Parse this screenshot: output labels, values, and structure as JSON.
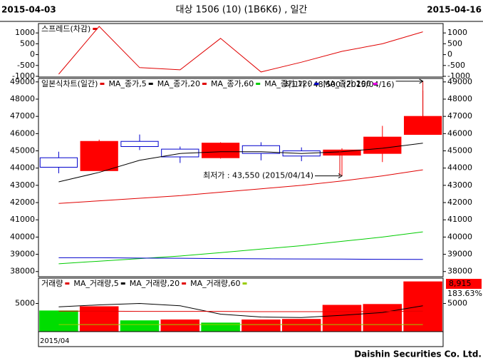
{
  "header": {
    "start_date": "2015-04-03",
    "title": "대상 1506 (10)  (1B6K6) , 일간",
    "end_date": "2015-04-16"
  },
  "chart_data": [
    {
      "type": "line",
      "series": [
        {
          "name": "스프레드(차감)",
          "color": "#e00000",
          "values": [
            -900,
            1300,
            -600,
            -700,
            750,
            -800,
            -350,
            150,
            500,
            1050
          ]
        }
      ],
      "ylim": [
        -1033,
        1433
      ],
      "yticks": [
        -1000,
        -500,
        0,
        500,
        1000
      ]
    },
    {
      "type": "candlestick",
      "name": "일본식차트(일간)",
      "name_color": "#e00000",
      "open": [
        44600,
        43850,
        45550,
        45100,
        44600,
        45300,
        45000,
        44750,
        44850,
        45950
      ],
      "high": [
        44950,
        45650,
        45950,
        45250,
        45500,
        45500,
        45200,
        45150,
        46450,
        48500
      ],
      "low": [
        43700,
        43850,
        45050,
        44300,
        44550,
        44450,
        44400,
        43550,
        44350,
        45950
      ],
      "close": [
        44050,
        45550,
        45250,
        44650,
        45450,
        44850,
        44700,
        45050,
        45800,
        47000
      ],
      "up_color": "#ff0000",
      "down_color": "#0000cc",
      "series": [
        {
          "name": "MA_종가,5",
          "color": "#000000",
          "values": [
            43200,
            43750,
            44450,
            44850,
            44950,
            44950,
            44850,
            44950,
            45150,
            45450
          ]
        },
        {
          "name": "MA_종가,20",
          "color": "#e00000",
          "values": [
            41950,
            42100,
            42250,
            42400,
            42600,
            42800,
            43000,
            43250,
            43550,
            43900
          ]
        },
        {
          "name": "MA_종가,60",
          "color": "#00cc00",
          "values": [
            38450,
            38600,
            38750,
            38900,
            39100,
            39300,
            39500,
            39750,
            40000,
            40300
          ]
        },
        {
          "name": "MA_종가,120",
          "color": "#0000cc",
          "values": [
            38800,
            38800,
            38780,
            38770,
            38750,
            38740,
            38730,
            38720,
            38710,
            38700
          ]
        },
        {
          "name": "MA_종가,200",
          "color": "#ee00ee",
          "values": [
            null,
            null,
            null,
            null,
            null,
            null,
            null,
            null,
            null,
            null
          ]
        }
      ],
      "ylim": [
        37700,
        49200
      ],
      "yticks": [
        38000,
        39000,
        40000,
        41000,
        42000,
        43000,
        44000,
        45000,
        46000,
        47000,
        48000,
        49000
      ],
      "annotations": [
        {
          "text": "최고가 : 48,500 (2015/04/16)",
          "color": "#e00000"
        },
        {
          "text": "최저가 : 43,550 (2015/04/14)",
          "color": "#0000cc"
        }
      ]
    },
    {
      "type": "bar",
      "name": "거래량",
      "name_color": "#e00000",
      "values": [
        3750,
        4500,
        2000,
        2150,
        1600,
        2150,
        2250,
        4750,
        4900,
        8915
      ],
      "colors": [
        "#00dd00",
        "#ff0000",
        "#00dd00",
        "#ff0000",
        "#00dd00",
        "#ff0000",
        "#ff0000",
        "#ff0000",
        "#ff0000",
        "#ff0000"
      ],
      "series": [
        {
          "name": "MA_거래량,5",
          "color": "#000000",
          "values": [
            4400,
            4750,
            5000,
            4600,
            3100,
            2600,
            2500,
            2900,
            3400,
            4600
          ]
        },
        {
          "name": "MA_거래량,20",
          "color": "#e00000",
          "values": [
            3650,
            3650,
            3600,
            3600,
            3600,
            3550,
            3550,
            3550,
            3600,
            3650
          ]
        },
        {
          "name": "MA_거래량,60",
          "color": "#99cc00",
          "values": [
            1250,
            1250,
            1250,
            1250,
            1250,
            1250,
            1250,
            1250,
            1250,
            1250
          ]
        }
      ],
      "ylim": [
        0,
        9500
      ],
      "yticks": [
        5000
      ],
      "last_value": {
        "value": 8915,
        "label": "8,915"
      },
      "change_pct": {
        "value": 183.63,
        "label": "183.63%"
      },
      "xlabel": "2015/04"
    }
  ],
  "footer": "Daishin Securities Co. Ltd."
}
